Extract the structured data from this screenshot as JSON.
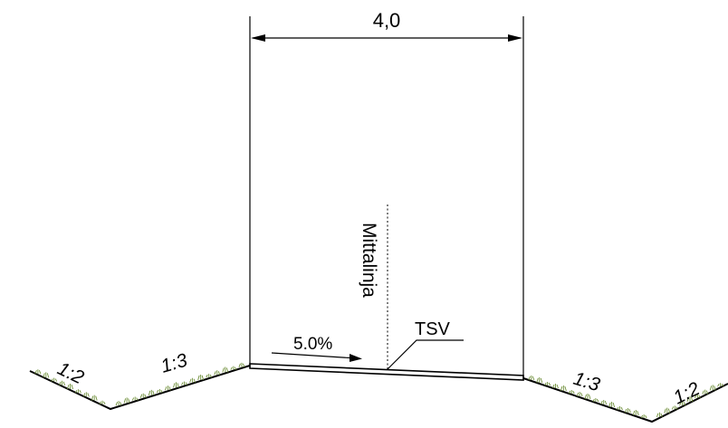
{
  "dimension": {
    "width_label": "4,0"
  },
  "centerline": {
    "label": "Mittalinja"
  },
  "crossfall": {
    "label": "5.0%"
  },
  "design_line": {
    "label": "TSV"
  },
  "side_slopes": {
    "left_outer": "1:2",
    "left_inner": "1:3",
    "right_inner": "1:3",
    "right_outer": "1:2"
  },
  "colors": {
    "line": "#000000",
    "grass": "#6f8f3a"
  }
}
